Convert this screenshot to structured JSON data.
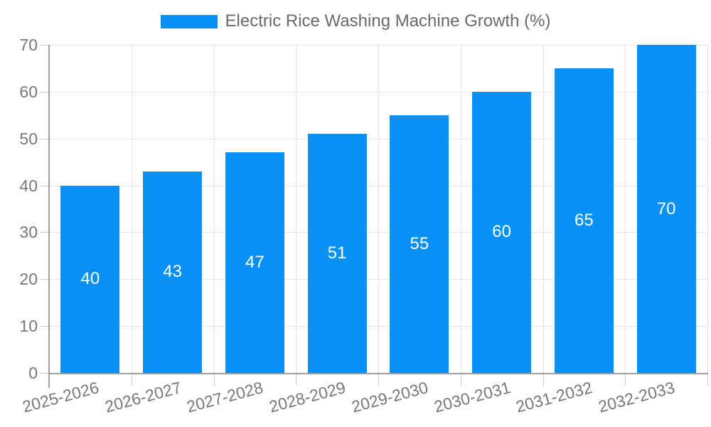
{
  "chart_data": {
    "type": "bar",
    "legend": "Electric Rice Washing Machine Growth (%)",
    "legend_position": "top",
    "categories": [
      "2025-2026",
      "2026-2027",
      "2027-2028",
      "2028-2029",
      "2029-2030",
      "2030-2031",
      "2031-2032",
      "2032-2033"
    ],
    "values": [
      40,
      43,
      47,
      51,
      55,
      60,
      65,
      70
    ],
    "value_labels": [
      "40",
      "43",
      "47",
      "51",
      "55",
      "60",
      "65",
      "70"
    ],
    "xlabel": "",
    "ylabel": "",
    "ylim": [
      0,
      70
    ],
    "yticks": [
      0,
      10,
      20,
      30,
      40,
      50,
      60,
      70
    ],
    "ytick_labels": [
      "0",
      "10",
      "20",
      "30",
      "40",
      "50",
      "60",
      "70"
    ],
    "grid": "on",
    "x_label_rotation_deg": -15
  },
  "colors": {
    "bar": "#0891f5",
    "grid": "#e4e7ea",
    "tick": "#c9cdd1",
    "axis": "#9b9ea1",
    "tick_label": "#76797c",
    "legend_text": "#67696c",
    "value_label": "#ffffff",
    "background": "#ffffff"
  }
}
